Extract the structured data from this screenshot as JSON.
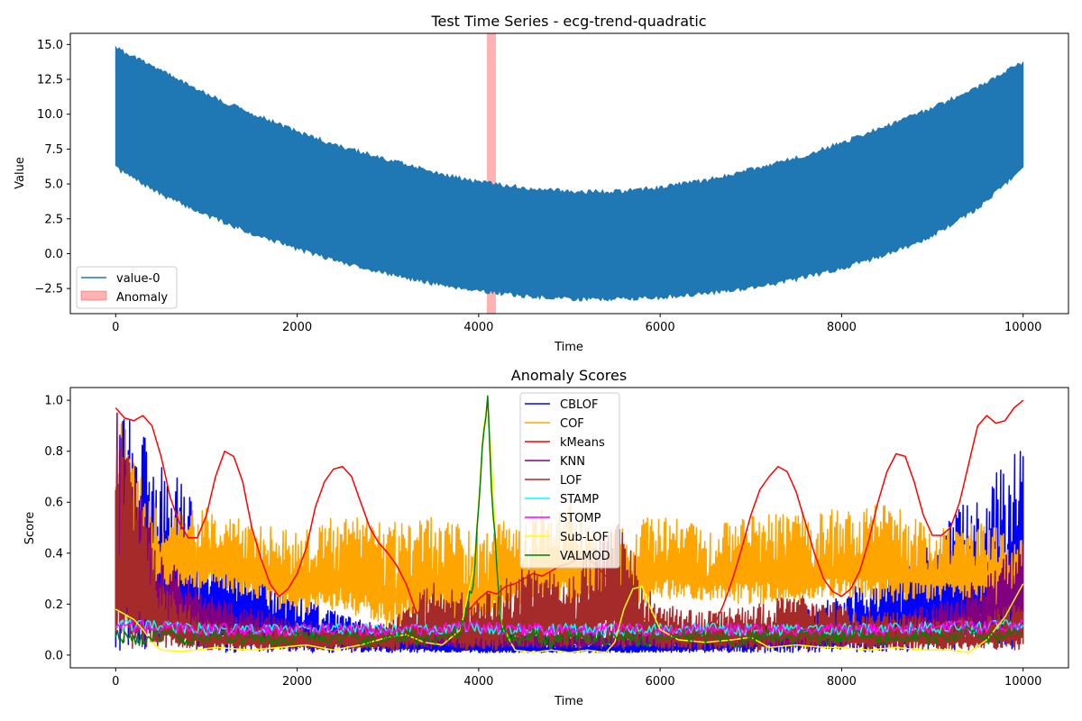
{
  "chart_data": [
    {
      "type": "line",
      "title": "Test Time Series - ecg-trend-quadratic",
      "xlabel": "Time",
      "ylabel": "Value",
      "xlim": [
        -500,
        10500
      ],
      "ylim": [
        -4.3,
        15.8
      ],
      "xticks": [
        0,
        2000,
        4000,
        6000,
        8000,
        10000
      ],
      "xtick_labels": [
        "0",
        "2000",
        "4000",
        "6000",
        "8000",
        "10000"
      ],
      "yticks": [
        -2.5,
        0.0,
        2.5,
        5.0,
        7.5,
        10.0,
        12.5,
        15.0
      ],
      "ytick_labels": [
        "−2.5",
        "0.0",
        "2.5",
        "5.0",
        "7.5",
        "10.0",
        "12.5",
        "15.0"
      ],
      "grid": false,
      "legend_placement": "lower left",
      "series": [
        {
          "name": "value-0",
          "color": "#1f77b4",
          "envelope_x": [
            0,
            500,
            1000,
            1500,
            2000,
            2500,
            3000,
            3500,
            4000,
            4500,
            5000,
            5500,
            6000,
            6500,
            7000,
            7500,
            8000,
            8500,
            9000,
            9500,
            10000
          ],
          "envelope_upper": [
            14.9,
            13.3,
            11.6,
            10.2,
            8.9,
            7.8,
            6.9,
            6.0,
            5.3,
            4.9,
            4.6,
            4.6,
            4.9,
            5.4,
            6.2,
            7.0,
            8.1,
            9.3,
            10.6,
            12.1,
            13.9
          ],
          "envelope_lower": [
            6.0,
            4.1,
            2.6,
            1.3,
            0.2,
            -0.8,
            -1.6,
            -2.3,
            -2.8,
            -3.2,
            -3.4,
            -3.4,
            -3.3,
            -3.0,
            -2.6,
            -2.0,
            -1.2,
            -0.2,
            1.1,
            3.1,
            6.0
          ]
        }
      ],
      "anomaly": {
        "name": "Anomaly",
        "x_start": 4090,
        "x_end": 4190,
        "color": "#ff0000",
        "alpha": 0.3
      }
    },
    {
      "type": "line",
      "title": "Anomaly Scores",
      "xlabel": "Time",
      "ylabel": "Score",
      "xlim": [
        -500,
        10500
      ],
      "ylim": [
        -0.05,
        1.05
      ],
      "xticks": [
        0,
        2000,
        4000,
        6000,
        8000,
        10000
      ],
      "xtick_labels": [
        "0",
        "2000",
        "4000",
        "6000",
        "8000",
        "10000"
      ],
      "yticks": [
        0.0,
        0.2,
        0.4,
        0.6,
        0.8,
        1.0
      ],
      "ytick_labels": [
        "0.0",
        "0.2",
        "0.4",
        "0.6",
        "0.8",
        "1.0"
      ],
      "grid": false,
      "legend_placement": "upper center",
      "series": [
        {
          "name": "CBLOF",
          "color": "#0000ff",
          "style": "band",
          "x": [
            0,
            500,
            1000,
            1500,
            2000,
            2500,
            3000,
            3500,
            4000,
            4500,
            5000,
            5500,
            6000,
            6500,
            7000,
            7500,
            8000,
            8500,
            9000,
            9500,
            10000
          ],
          "upper": [
            1.0,
            0.8,
            0.52,
            0.35,
            0.24,
            0.16,
            0.11,
            0.07,
            0.06,
            0.05,
            0.05,
            0.05,
            0.06,
            0.08,
            0.12,
            0.17,
            0.25,
            0.36,
            0.48,
            0.65,
            0.85
          ],
          "lower": [
            0.01,
            0.01,
            0.01,
            0.01,
            0.01,
            0.01,
            0.01,
            0.01,
            0.01,
            0.01,
            0.01,
            0.01,
            0.01,
            0.01,
            0.01,
            0.01,
            0.01,
            0.01,
            0.01,
            0.01,
            0.01
          ]
        },
        {
          "name": "COF",
          "color": "#ffa500",
          "style": "band",
          "x": [
            0,
            500,
            1000,
            1500,
            2000,
            2500,
            3000,
            3500,
            4000,
            4500,
            5000,
            5500,
            6000,
            6500,
            7000,
            7500,
            8000,
            8500,
            9000,
            9500,
            10000
          ],
          "upper": [
            0.98,
            0.58,
            0.58,
            0.52,
            0.48,
            0.56,
            0.52,
            0.55,
            0.5,
            0.55,
            0.62,
            0.5,
            0.56,
            0.5,
            0.55,
            0.56,
            0.58,
            0.6,
            0.5,
            0.52,
            0.48
          ],
          "lower": [
            0.1,
            0.25,
            0.26,
            0.22,
            0.15,
            0.18,
            0.1,
            0.16,
            0.1,
            0.18,
            0.2,
            0.17,
            0.22,
            0.2,
            0.2,
            0.2,
            0.22,
            0.2,
            0.21,
            0.22,
            0.1
          ]
        },
        {
          "name": "kMeans",
          "color": "#ff0000",
          "style": "line",
          "x": [
            0,
            100,
            200,
            300,
            400,
            500,
            600,
            700,
            800,
            900,
            1000,
            1100,
            1200,
            1300,
            1400,
            1500,
            1600,
            1700,
            1800,
            1900,
            2000,
            2100,
            2200,
            2300,
            2400,
            2500,
            2600,
            2700,
            2800,
            2900,
            3000,
            3100,
            3200,
            3300,
            3400,
            3500,
            3600,
            3700,
            3800,
            3900,
            4000,
            4100,
            4200,
            4300,
            4400,
            4500,
            4600,
            4700,
            4800,
            4900,
            5000,
            5100,
            5200,
            5300,
            5400,
            5500,
            5600,
            5700,
            5800,
            5900,
            6000,
            6100,
            6200,
            6300,
            6400,
            6500,
            6600,
            6700,
            6800,
            6900,
            7000,
            7100,
            7200,
            7300,
            7400,
            7500,
            7600,
            7700,
            7800,
            7900,
            8000,
            8100,
            8200,
            8300,
            8400,
            8500,
            8600,
            8700,
            8800,
            8900,
            9000,
            9100,
            9200,
            9300,
            9400,
            9500,
            9600,
            9700,
            9800,
            9900,
            10000
          ],
          "values": [
            0.97,
            0.93,
            0.92,
            0.94,
            0.9,
            0.78,
            0.62,
            0.52,
            0.46,
            0.46,
            0.55,
            0.7,
            0.8,
            0.78,
            0.68,
            0.5,
            0.38,
            0.28,
            0.23,
            0.26,
            0.32,
            0.42,
            0.58,
            0.68,
            0.73,
            0.74,
            0.7,
            0.6,
            0.5,
            0.44,
            0.4,
            0.35,
            0.28,
            0.18,
            0.12,
            0.12,
            0.11,
            0.11,
            0.14,
            0.18,
            0.22,
            0.25,
            0.24,
            0.27,
            0.28,
            0.3,
            0.32,
            0.31,
            0.33,
            0.35,
            0.36,
            0.38,
            0.38,
            0.35,
            0.31,
            0.27,
            0.22,
            0.18,
            0.15,
            0.12,
            0.11,
            0.1,
            0.1,
            0.09,
            0.08,
            0.1,
            0.12,
            0.2,
            0.3,
            0.42,
            0.55,
            0.65,
            0.7,
            0.74,
            0.72,
            0.64,
            0.52,
            0.4,
            0.3,
            0.25,
            0.23,
            0.26,
            0.33,
            0.45,
            0.6,
            0.72,
            0.79,
            0.78,
            0.68,
            0.55,
            0.47,
            0.47,
            0.5,
            0.6,
            0.75,
            0.9,
            0.94,
            0.91,
            0.92,
            0.97,
            1.0
          ]
        },
        {
          "name": "KNN",
          "color": "#800080",
          "style": "band",
          "x": [
            0,
            500,
            1000,
            1500,
            2000,
            2500,
            3000,
            3500,
            4000,
            4500,
            5000,
            5500,
            6000,
            6500,
            7000,
            7500,
            8000,
            8500,
            9000,
            9500,
            10000
          ],
          "upper": [
            0.98,
            0.4,
            0.24,
            0.18,
            0.14,
            0.12,
            0.11,
            0.1,
            0.1,
            0.09,
            0.09,
            0.1,
            0.1,
            0.11,
            0.12,
            0.12,
            0.13,
            0.15,
            0.2,
            0.28,
            0.47
          ],
          "lower": [
            0.03,
            0.12,
            0.06,
            0.04,
            0.03,
            0.03,
            0.03,
            0.03,
            0.03,
            0.03,
            0.03,
            0.03,
            0.03,
            0.03,
            0.03,
            0.03,
            0.03,
            0.03,
            0.05,
            0.07,
            0.12
          ]
        },
        {
          "name": "LOF",
          "color": "#a52a2a",
          "style": "band",
          "x": [
            0,
            500,
            1000,
            1500,
            2000,
            2500,
            3000,
            3500,
            4000,
            4500,
            5000,
            5500,
            6000,
            6500,
            7000,
            7500,
            8000,
            8500,
            9000,
            9500,
            10000
          ],
          "upper": [
            0.98,
            0.3,
            0.14,
            0.12,
            0.12,
            0.12,
            0.12,
            0.3,
            0.22,
            0.36,
            0.3,
            0.55,
            0.2,
            0.17,
            0.2,
            0.24,
            0.2,
            0.17,
            0.15,
            0.15,
            0.22
          ],
          "lower": [
            0.03,
            0.02,
            0.02,
            0.02,
            0.02,
            0.02,
            0.02,
            0.02,
            0.02,
            0.02,
            0.02,
            0.02,
            0.02,
            0.02,
            0.02,
            0.02,
            0.02,
            0.02,
            0.02,
            0.02,
            0.02
          ]
        },
        {
          "name": "STAMP",
          "color": "#00ffff",
          "style": "line",
          "x": [
            0,
            500,
            1000,
            1500,
            2000,
            2500,
            3000,
            3500,
            4000,
            4500,
            5000,
            5500,
            6000,
            6500,
            7000,
            7500,
            8000,
            8500,
            9000,
            9500,
            10000
          ],
          "values": [
            0.12,
            0.11,
            0.1,
            0.1,
            0.1,
            0.1,
            0.1,
            0.1,
            0.11,
            0.1,
            0.1,
            0.1,
            0.1,
            0.1,
            0.1,
            0.1,
            0.1,
            0.1,
            0.11,
            0.11,
            0.12
          ]
        },
        {
          "name": "STOMP",
          "color": "#ff00ff",
          "style": "line",
          "x": [
            0,
            500,
            1000,
            1500,
            2000,
            2500,
            3000,
            3500,
            4000,
            4500,
            5000,
            5500,
            6000,
            6500,
            7000,
            7500,
            8000,
            8500,
            9000,
            9500,
            10000
          ],
          "values": [
            0.12,
            0.11,
            0.1,
            0.1,
            0.1,
            0.1,
            0.1,
            0.1,
            0.11,
            0.1,
            0.1,
            0.1,
            0.1,
            0.1,
            0.1,
            0.1,
            0.1,
            0.1,
            0.11,
            0.11,
            0.12
          ]
        },
        {
          "name": "Sub-LOF",
          "color": "#ffff00",
          "style": "line",
          "x": [
            0,
            100,
            200,
            300,
            400,
            500,
            700,
            900,
            1100,
            1300,
            1500,
            1800,
            2100,
            2400,
            2700,
            3000,
            3200,
            3400,
            3600,
            3800,
            3950,
            4000,
            4050,
            4100,
            4150,
            4200,
            4250,
            4400,
            4600,
            4800,
            5000,
            5200,
            5400,
            5500,
            5600,
            5700,
            5800,
            5900,
            6000,
            6200,
            6500,
            6800,
            7000,
            7200,
            7500,
            7800,
            8000,
            8300,
            8600,
            8900,
            9200,
            9400,
            9600,
            9800,
            10000
          ],
          "values": [
            0.18,
            0.16,
            0.14,
            0.1,
            0.05,
            0.02,
            0.015,
            0.02,
            0.03,
            0.025,
            0.02,
            0.03,
            0.04,
            0.02,
            0.04,
            0.07,
            0.08,
            0.05,
            0.04,
            0.1,
            0.35,
            0.6,
            0.88,
            1.0,
            0.7,
            0.35,
            0.12,
            0.02,
            0.01,
            0.02,
            0.01,
            0.02,
            0.01,
            0.05,
            0.18,
            0.26,
            0.27,
            0.18,
            0.1,
            0.06,
            0.05,
            0.06,
            0.07,
            0.03,
            0.04,
            0.03,
            0.03,
            0.02,
            0.03,
            0.02,
            0.02,
            0.01,
            0.06,
            0.15,
            0.28
          ]
        },
        {
          "name": "VALMOD",
          "color": "#008000",
          "style": "line",
          "x": [
            0,
            200,
            400,
            600,
            800,
            1000,
            1200,
            1400,
            1600,
            1800,
            2000,
            2200,
            2400,
            2600,
            2800,
            3000,
            3200,
            3400,
            3600,
            3800,
            3950,
            4050,
            4100,
            4150,
            4250,
            4400,
            4600,
            4800,
            5000,
            5200,
            5400,
            5600,
            5800,
            6000,
            6200,
            6400,
            6600,
            6800,
            7000,
            7200,
            7400,
            7600,
            7800,
            8000,
            8200,
            8400,
            8600,
            8800,
            9000,
            9200,
            9400,
            9600,
            9800,
            10000
          ],
          "values": [
            0.08,
            0.06,
            0.07,
            0.08,
            0.05,
            0.07,
            0.08,
            0.06,
            0.07,
            0.05,
            0.07,
            0.08,
            0.06,
            0.08,
            0.05,
            0.07,
            0.08,
            0.05,
            0.07,
            0.1,
            0.3,
            0.88,
            1.0,
            0.6,
            0.1,
            0.06,
            0.08,
            0.05,
            0.08,
            0.07,
            0.06,
            0.08,
            0.05,
            0.07,
            0.09,
            0.06,
            0.08,
            0.05,
            0.07,
            0.08,
            0.06,
            0.08,
            0.06,
            0.07,
            0.09,
            0.06,
            0.07,
            0.08,
            0.06,
            0.07,
            0.09,
            0.06,
            0.08,
            0.1
          ]
        }
      ]
    }
  ]
}
